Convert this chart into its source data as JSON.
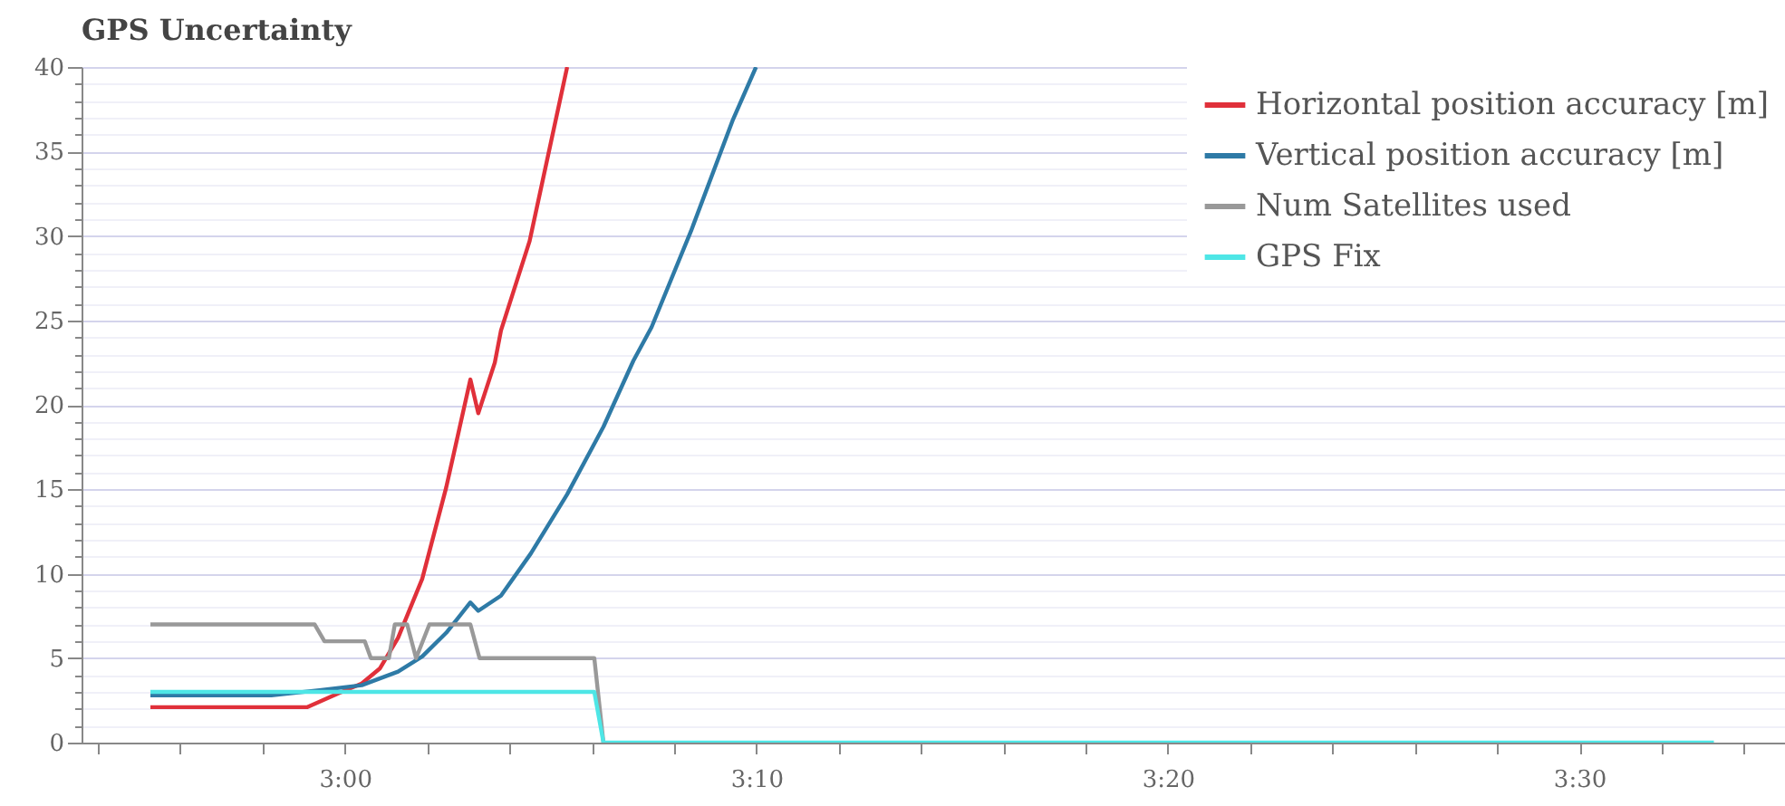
{
  "chart_data": {
    "type": "line",
    "title": "GPS Uncertainty",
    "xlim": [
      2.8933,
      3.5833
    ],
    "xticks": [
      {
        "value": 2.9,
        "label": null
      },
      {
        "value": 2.9333,
        "label": null
      },
      {
        "value": 2.9667,
        "label": null
      },
      {
        "value": 3.0,
        "label": "3:00"
      },
      {
        "value": 3.0333,
        "label": null
      },
      {
        "value": 3.0667,
        "label": null
      },
      {
        "value": 3.1,
        "label": null
      },
      {
        "value": 3.1333,
        "label": null
      },
      {
        "value": 3.1667,
        "label": "3:10"
      },
      {
        "value": 3.2,
        "label": null
      },
      {
        "value": 3.2333,
        "label": null
      },
      {
        "value": 3.2667,
        "label": null
      },
      {
        "value": 3.3,
        "label": null
      },
      {
        "value": 3.3333,
        "label": "3:20"
      },
      {
        "value": 3.3667,
        "label": null
      },
      {
        "value": 3.4,
        "label": null
      },
      {
        "value": 3.4333,
        "label": null
      },
      {
        "value": 3.4667,
        "label": null
      },
      {
        "value": 3.5,
        "label": "3:30"
      },
      {
        "value": 3.5333,
        "label": null
      },
      {
        "value": 3.5667,
        "label": null
      }
    ],
    "ylim": [
      0,
      40
    ],
    "yticks": [
      0,
      {
        "value": 1,
        "label": null
      },
      {
        "value": 2,
        "label": null
      },
      {
        "value": 3,
        "label": null
      },
      {
        "value": 4,
        "label": null
      },
      5,
      {
        "value": 6,
        "label": null
      },
      {
        "value": 7,
        "label": null
      },
      {
        "value": 8,
        "label": null
      },
      {
        "value": 9,
        "label": null
      },
      10,
      {
        "value": 11,
        "label": null
      },
      {
        "value": 12,
        "label": null
      },
      {
        "value": 13,
        "label": null
      },
      {
        "value": 14,
        "label": null
      },
      15,
      {
        "value": 16,
        "label": null
      },
      {
        "value": 17,
        "label": null
      },
      {
        "value": 18,
        "label": null
      },
      {
        "value": 19,
        "label": null
      },
      20,
      {
        "value": 21,
        "label": null
      },
      {
        "value": 22,
        "label": null
      },
      {
        "value": 23,
        "label": null
      },
      {
        "value": 24,
        "label": null
      },
      25,
      {
        "value": 26,
        "label": null
      },
      {
        "value": 27,
        "label": null
      },
      {
        "value": 28,
        "label": null
      },
      {
        "value": 29,
        "label": null
      },
      30,
      {
        "value": 31,
        "label": null
      },
      {
        "value": 32,
        "label": null
      },
      {
        "value": 33,
        "label": null
      },
      {
        "value": 34,
        "label": null
      },
      35,
      {
        "value": 36,
        "label": null
      },
      {
        "value": 37,
        "label": null
      },
      {
        "value": 38,
        "label": null
      },
      {
        "value": 39,
        "label": null
      },
      40
    ],
    "grid": "y",
    "legend": "top right",
    "line_style": "solid",
    "marker": "none",
    "series": [
      {
        "name": "Horizontal position accuracy [m]",
        "color": "#e0303a",
        "x": [
          2.9212,
          2.9848,
          2.997,
          3.0068,
          3.0142,
          3.0215,
          3.0313,
          3.041,
          3.0508,
          3.054,
          3.0607,
          3.0632,
          3.0748,
          3.09
        ],
        "values": [
          2.1,
          2.1,
          2.9,
          3.5,
          4.4,
          6.2,
          9.7,
          15.1,
          21.5,
          19.5,
          22.5,
          24.4,
          29.7,
          40
        ]
      },
      {
        "name": "Vertical position accuracy [m]",
        "color": "#2e7aa6",
        "x": [
          2.9212,
          2.9702,
          2.9897,
          3.0068,
          3.0215,
          3.0313,
          3.041,
          3.0508,
          3.054,
          3.0632,
          3.0753,
          3.09,
          3.1047,
          3.1168,
          3.1242,
          3.1402,
          3.1572,
          3.1665
        ],
        "values": [
          2.8,
          2.8,
          3.1,
          3.4,
          4.2,
          5.1,
          6.5,
          8.3,
          7.8,
          8.7,
          11.2,
          14.7,
          18.7,
          22.6,
          24.6,
          30.3,
          36.9,
          40
        ]
      },
      {
        "name": "Num Satellites used",
        "color": "#999999",
        "x": [
          2.9212,
          2.9877,
          2.9917,
          3.008,
          3.0105,
          3.0178,
          3.0202,
          3.0252,
          3.0288,
          3.0342,
          3.0508,
          3.0545,
          3.101,
          3.1047
        ],
        "values": [
          7,
          7,
          6,
          6,
          5,
          5,
          7,
          7,
          5,
          7,
          7,
          5,
          5,
          0
        ]
      },
      {
        "name": "GPS Fix",
        "color": "#4ee6e6",
        "x": [
          2.9212,
          3.101,
          3.1047,
          3.5545
        ],
        "values": [
          3,
          3,
          0,
          0
        ]
      }
    ]
  }
}
